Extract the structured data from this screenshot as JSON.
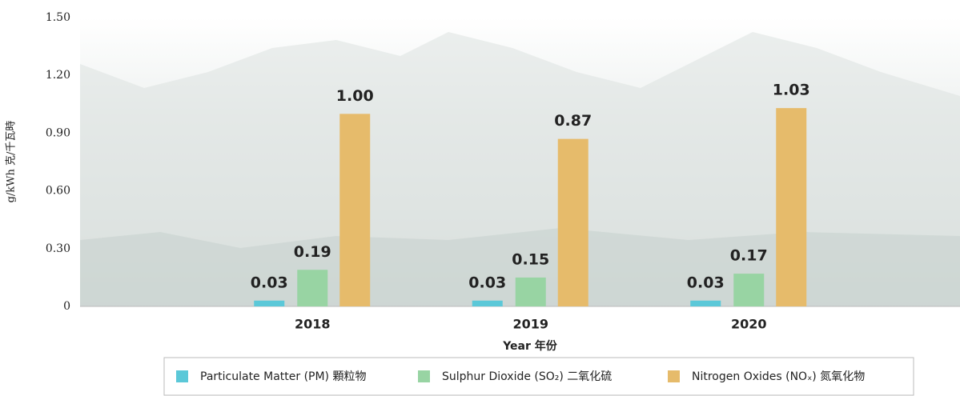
{
  "chart_data": {
    "type": "bar",
    "y_label": "g/kWh 克/千瓦時",
    "x_label": "Year 年份",
    "categories": [
      "2018",
      "2019",
      "2020"
    ],
    "series": [
      {
        "name": "Particulate Matter (PM)  顆粒物",
        "color": "#5bc8d8",
        "values": [
          0.03,
          0.03,
          0.03
        ],
        "value_labels": [
          "0.03",
          "0.03",
          "0.03"
        ]
      },
      {
        "name": "Sulphur Dioxide (SO₂)  二氧化硫",
        "color": "#98d4a3",
        "values": [
          0.19,
          0.15,
          0.17
        ],
        "value_labels": [
          "0.19",
          "0.15",
          "0.17"
        ]
      },
      {
        "name": "Nitrogen Oxides (NOₓ)  氮氧化物",
        "color": "#e6bb6b",
        "values": [
          1.0,
          0.87,
          1.03
        ],
        "value_labels": [
          "1.00",
          "0.87",
          "1.03"
        ]
      }
    ],
    "ylim": [
      0,
      1.5
    ],
    "yticks": [
      0,
      {
        "value": 0.3,
        "label": "0.30"
      },
      {
        "value": 0.6,
        "label": "0.60"
      },
      {
        "value": 0.9,
        "label": "0.90"
      },
      {
        "value": 1.2,
        "label": "1.20"
      },
      {
        "value": 1.5,
        "label": "1.50"
      }
    ],
    "grid": false,
    "legend": "bottom"
  }
}
